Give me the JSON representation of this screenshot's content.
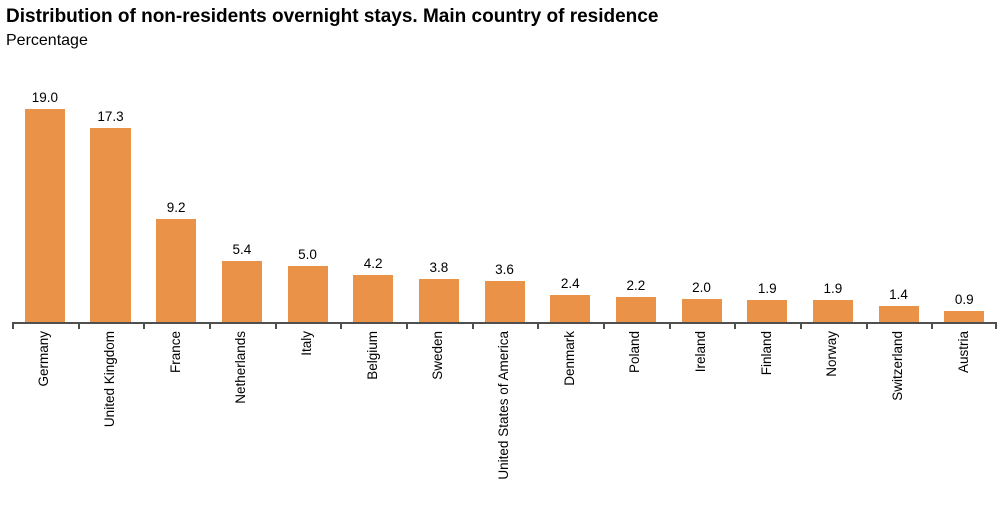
{
  "header": {
    "title": "Distribution of non-residents overnight stays. Main country of residence",
    "subtitle": "Percentage"
  },
  "colors": {
    "bar": "#EB9249",
    "axis": "#4F4F4F",
    "text": "#000000",
    "background": "#FFFFFF"
  },
  "chart_data": {
    "type": "bar",
    "title": "Distribution of non-residents overnight stays. Main country of residence",
    "subtitle": "Percentage",
    "categories": [
      "Germany",
      "United Kingdom",
      "France",
      "Netherlands",
      "Italy",
      "Belgium",
      "Sweden",
      "United States of America",
      "Denmark",
      "Poland",
      "Ireland",
      "Finland",
      "Norway",
      "Switzerland",
      "Austria"
    ],
    "values": [
      19.0,
      17.3,
      9.2,
      5.4,
      5.0,
      4.2,
      3.8,
      3.6,
      2.4,
      2.2,
      2.0,
      1.9,
      1.9,
      1.4,
      0.9
    ],
    "xlabel": "",
    "ylabel": "Percentage",
    "ylim": [
      0,
      20
    ],
    "grid": false,
    "legend": "none",
    "data_labels": true,
    "data_label_format": "one-decimal",
    "x_tick_label_rotation_deg": 90,
    "bar_color": "#EB9249"
  }
}
